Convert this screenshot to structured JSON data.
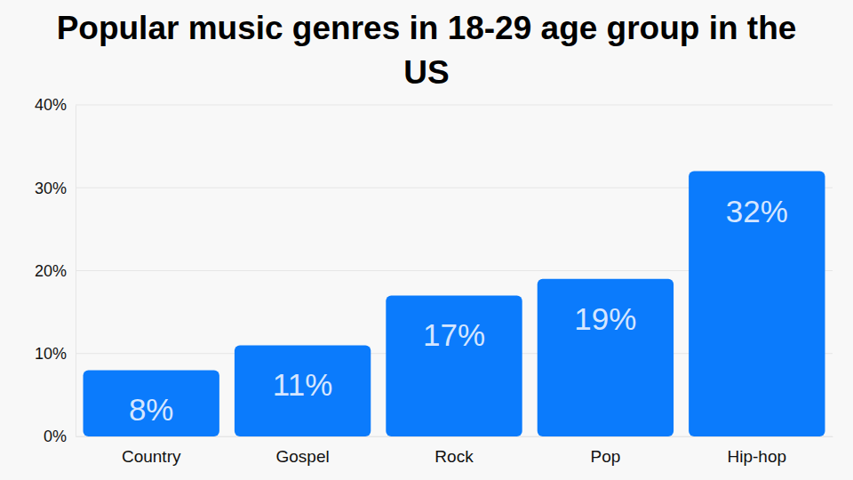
{
  "chart_data": {
    "type": "bar",
    "title": "Popular music genres in 18-29 age group in the US",
    "categories": [
      "Country",
      "Gospel",
      "Rock",
      "Pop",
      "Hip-hop"
    ],
    "values": [
      8,
      11,
      17,
      19,
      32
    ],
    "value_labels": [
      "8%",
      "11%",
      "17%",
      "19%",
      "32%"
    ],
    "data_labels": true,
    "color": "#0b7bfc",
    "ylim": [
      0,
      40
    ],
    "yticks": [
      {
        "value": 0,
        "label": "0%"
      },
      {
        "value": 10,
        "label": "10%"
      },
      {
        "value": 20,
        "label": "20%"
      },
      {
        "value": 30,
        "label": "30%"
      },
      {
        "value": 40,
        "label": "40%"
      }
    ],
    "grid": true
  }
}
